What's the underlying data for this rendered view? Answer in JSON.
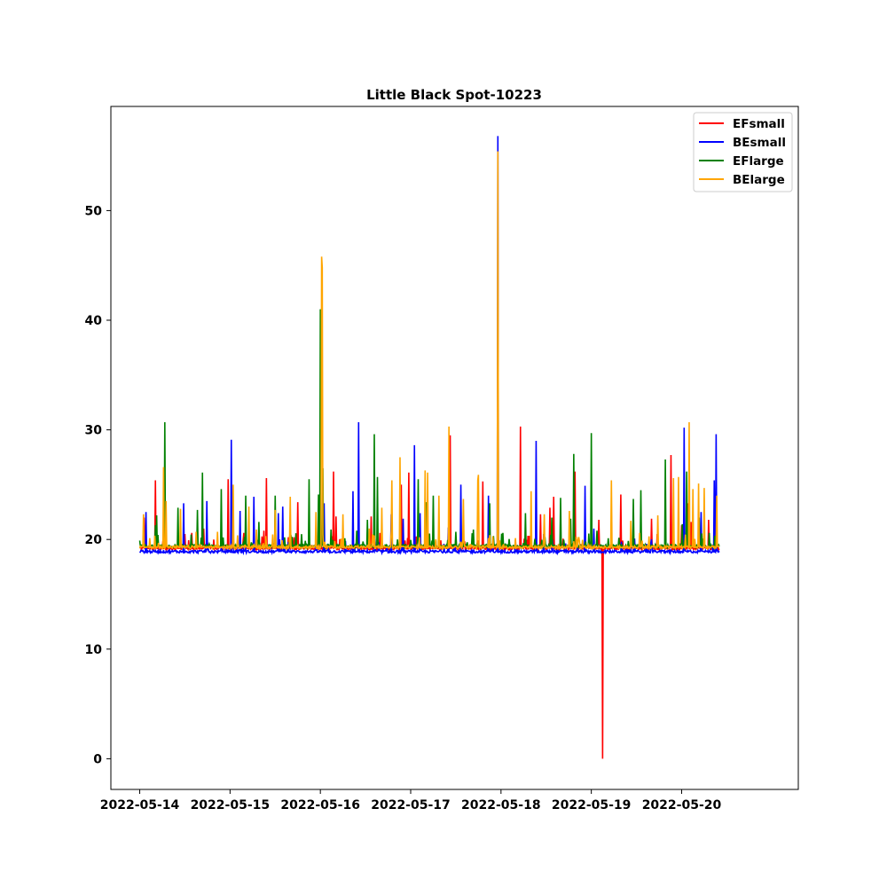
{
  "chart_data": {
    "type": "line",
    "title": "Little Black Spot-10223",
    "xlabel": "",
    "ylabel": "",
    "x_ticks": [
      "2022-05-14",
      "2022-05-15",
      "2022-05-16",
      "2022-05-17",
      "2022-05-18",
      "2022-05-19",
      "2022-05-20"
    ],
    "y_ticks": [
      0,
      10,
      20,
      30,
      40,
      50
    ],
    "xlim": [
      "2022-05-13T16:20",
      "2022-05-21T07:00"
    ],
    "ylim": [
      -2.8,
      59.5
    ],
    "grid": false,
    "legend_position": "top-right",
    "baselines": {
      "EFsmall": 19.2,
      "BEsmall": 18.9,
      "EFlarge": 19.4,
      "BElarge": 19.3
    },
    "series": [
      {
        "name": "EFsmall",
        "color": "#ff0000",
        "spikes": [
          [
            "2022-05-14T01:10",
            22.0
          ],
          [
            "2022-05-14T04:05",
            25.4
          ],
          [
            "2022-05-14T12:00",
            20.5
          ],
          [
            "2022-05-14T13:50",
            20.6
          ],
          [
            "2022-05-14T17:00",
            21.0
          ],
          [
            "2022-05-14T23:25",
            25.5
          ],
          [
            "2022-05-15T03:40",
            20.6
          ],
          [
            "2022-05-15T08:55",
            20.8
          ],
          [
            "2022-05-15T09:40",
            25.6
          ],
          [
            "2022-05-15T15:25",
            20.2
          ],
          [
            "2022-05-15T18:00",
            23.4
          ],
          [
            "2022-05-16T03:00",
            20.3
          ],
          [
            "2022-05-16T03:25",
            26.2
          ],
          [
            "2022-05-16T04:05",
            22.1
          ],
          [
            "2022-05-16T13:30",
            22.1
          ],
          [
            "2022-05-16T15:50",
            20.6
          ],
          [
            "2022-05-16T23:25",
            26.1
          ],
          [
            "2022-05-16T21:30",
            25.0
          ],
          [
            "2022-05-17T10:30",
            29.5
          ],
          [
            "2022-05-17T14:00",
            20.6
          ],
          [
            "2022-05-17T19:10",
            25.3
          ],
          [
            "2022-05-17T23:10",
            20.8
          ],
          [
            "2022-05-18T05:05",
            30.3
          ],
          [
            "2022-05-18T10:30",
            22.3
          ],
          [
            "2022-05-18T13:00",
            22.9
          ],
          [
            "2022-05-18T14:00",
            23.9
          ],
          [
            "2022-05-18T19:40",
            26.2
          ],
          [
            "2022-05-18T23:55",
            21.0
          ],
          [
            "2022-05-19T02:00",
            21.8
          ],
          [
            "2022-05-19T03:00",
            0.0
          ],
          [
            "2022-05-19T07:50",
            24.1
          ],
          [
            "2022-05-19T15:55",
            21.9
          ],
          [
            "2022-05-19T17:30",
            20.5
          ],
          [
            "2022-05-19T21:05",
            27.7
          ],
          [
            "2022-05-20T00:00",
            21.3
          ],
          [
            "2022-05-20T01:40",
            23.3
          ],
          [
            "2022-05-20T02:30",
            21.6
          ],
          [
            "2022-05-20T05:00",
            19.7
          ],
          [
            "2022-05-20T07:05",
            21.8
          ]
        ]
      },
      {
        "name": "BEsmall",
        "color": "#0000ff",
        "spikes": [
          [
            "2022-05-14T01:40",
            22.5
          ],
          [
            "2022-05-14T11:35",
            23.3
          ],
          [
            "2022-05-14T17:50",
            23.5
          ],
          [
            "2022-05-15T00:20",
            29.1
          ],
          [
            "2022-05-15T02:40",
            22.6
          ],
          [
            "2022-05-15T06:20",
            23.9
          ],
          [
            "2022-05-15T12:50",
            22.4
          ],
          [
            "2022-05-15T14:00",
            23.0
          ],
          [
            "2022-05-16T00:55",
            23.3
          ],
          [
            "2022-05-16T02:00",
            19.6
          ],
          [
            "2022-05-16T08:40",
            24.4
          ],
          [
            "2022-05-16T10:10",
            30.7
          ],
          [
            "2022-05-16T18:45",
            22.3
          ],
          [
            "2022-05-16T22:00",
            21.9
          ],
          [
            "2022-05-17T00:55",
            28.6
          ],
          [
            "2022-05-17T02:30",
            22.4
          ],
          [
            "2022-05-17T10:00",
            21.1
          ],
          [
            "2022-05-17T13:15",
            25.0
          ],
          [
            "2022-05-17T20:40",
            24.0
          ],
          [
            "2022-05-17T23:10",
            56.8
          ],
          [
            "2022-05-18T09:20",
            29.0
          ],
          [
            "2022-05-18T11:20",
            20.5
          ],
          [
            "2022-05-18T22:20",
            24.9
          ],
          [
            "2022-05-19T00:40",
            21.0
          ],
          [
            "2022-05-19T08:00",
            19.8
          ],
          [
            "2022-05-19T16:00",
            20.0
          ],
          [
            "2022-05-20T00:40",
            30.2
          ],
          [
            "2022-05-20T05:10",
            22.5
          ],
          [
            "2022-05-20T08:35",
            25.4
          ],
          [
            "2022-05-20T09:05",
            29.6
          ]
        ]
      },
      {
        "name": "EFlarge",
        "color": "#008000",
        "spikes": [
          [
            "2022-05-14T04:10",
            21.3
          ],
          [
            "2022-05-14T04:30",
            22.2
          ],
          [
            "2022-05-14T06:35",
            30.7
          ],
          [
            "2022-05-14T10:05",
            22.9
          ],
          [
            "2022-05-14T15:20",
            22.7
          ],
          [
            "2022-05-14T16:35",
            26.1
          ],
          [
            "2022-05-14T21:40",
            24.6
          ],
          [
            "2022-05-15T00:50",
            20.6
          ],
          [
            "2022-05-15T04:10",
            24.0
          ],
          [
            "2022-05-15T07:40",
            21.6
          ],
          [
            "2022-05-15T12:00",
            24.0
          ],
          [
            "2022-05-15T21:00",
            25.5
          ],
          [
            "2022-05-15T23:25",
            24.1
          ],
          [
            "2022-05-16T00:00",
            41.0
          ],
          [
            "2022-05-16T00:40",
            26.5
          ],
          [
            "2022-05-16T02:50",
            20.9
          ],
          [
            "2022-05-16T09:40",
            20.8
          ],
          [
            "2022-05-16T12:30",
            21.8
          ],
          [
            "2022-05-16T14:15",
            29.6
          ],
          [
            "2022-05-16T15:10",
            25.7
          ],
          [
            "2022-05-16T20:25",
            20.0
          ],
          [
            "2022-05-17T02:00",
            25.5
          ],
          [
            "2022-05-17T04:05",
            23.4
          ],
          [
            "2022-05-17T06:00",
            24.0
          ],
          [
            "2022-05-17T12:00",
            20.7
          ],
          [
            "2022-05-17T16:35",
            20.9
          ],
          [
            "2022-05-17T21:00",
            23.3
          ],
          [
            "2022-05-18T06:30",
            22.4
          ],
          [
            "2022-05-18T13:30",
            22.0
          ],
          [
            "2022-05-18T15:50",
            23.8
          ],
          [
            "2022-05-18T18:30",
            21.9
          ],
          [
            "2022-05-18T19:20",
            27.8
          ],
          [
            "2022-05-18T23:55",
            29.7
          ],
          [
            "2022-05-19T01:30",
            20.8
          ],
          [
            "2022-05-19T11:10",
            23.7
          ],
          [
            "2022-05-19T13:10",
            24.5
          ],
          [
            "2022-05-19T19:35",
            27.3
          ],
          [
            "2022-05-20T00:05",
            21.4
          ],
          [
            "2022-05-20T01:20",
            26.2
          ],
          [
            "2022-05-20T04:35",
            22.0
          ],
          [
            "2022-05-20T07:20",
            20.6
          ]
        ]
      },
      {
        "name": "BElarge",
        "color": "#ffa500",
        "spikes": [
          [
            "2022-05-14T01:00",
            22.3
          ],
          [
            "2022-05-14T06:20",
            26.6
          ],
          [
            "2022-05-14T07:00",
            23.5
          ],
          [
            "2022-05-14T10:50",
            22.8
          ],
          [
            "2022-05-14T15:00",
            20.7
          ],
          [
            "2022-05-14T20:35",
            20.7
          ],
          [
            "2022-05-15T00:45",
            25.0
          ],
          [
            "2022-05-15T05:00",
            23.0
          ],
          [
            "2022-05-15T07:00",
            20.9
          ],
          [
            "2022-05-15T12:00",
            22.7
          ],
          [
            "2022-05-15T16:00",
            23.9
          ],
          [
            "2022-05-15T22:50",
            22.5
          ],
          [
            "2022-05-16T00:15",
            45.8
          ],
          [
            "2022-05-16T00:25",
            44.8
          ],
          [
            "2022-05-16T05:55",
            22.3
          ],
          [
            "2022-05-16T12:55",
            21.0
          ],
          [
            "2022-05-16T16:20",
            22.9
          ],
          [
            "2022-05-16T18:50",
            20.8
          ],
          [
            "2022-05-16T19:00",
            25.4
          ],
          [
            "2022-05-16T21:10",
            27.5
          ],
          [
            "2022-05-17T02:15",
            20.2
          ],
          [
            "2022-05-17T03:50",
            26.3
          ],
          [
            "2022-05-17T04:25",
            26.1
          ],
          [
            "2022-05-17T07:30",
            24.0
          ],
          [
            "2022-05-17T10:05",
            30.3
          ],
          [
            "2022-05-17T14:00",
            23.7
          ],
          [
            "2022-05-17T17:50",
            25.4
          ],
          [
            "2022-05-17T18:00",
            25.9
          ],
          [
            "2022-05-17T21:00",
            20.4
          ],
          [
            "2022-05-17T23:10",
            55.4
          ],
          [
            "2022-05-18T08:00",
            24.4
          ],
          [
            "2022-05-18T11:30",
            22.3
          ],
          [
            "2022-05-18T18:10",
            22.6
          ],
          [
            "2022-05-19T05:20",
            25.4
          ],
          [
            "2022-05-19T10:30",
            21.7
          ],
          [
            "2022-05-19T12:50",
            20.6
          ],
          [
            "2022-05-19T17:40",
            22.2
          ],
          [
            "2022-05-19T21:50",
            25.6
          ],
          [
            "2022-05-19T23:10",
            25.7
          ],
          [
            "2022-05-20T02:00",
            30.7
          ],
          [
            "2022-05-20T02:55",
            24.6
          ],
          [
            "2022-05-20T04:30",
            25.1
          ],
          [
            "2022-05-20T06:00",
            24.7
          ],
          [
            "2022-05-20T09:20",
            24.0
          ]
        ]
      }
    ]
  }
}
